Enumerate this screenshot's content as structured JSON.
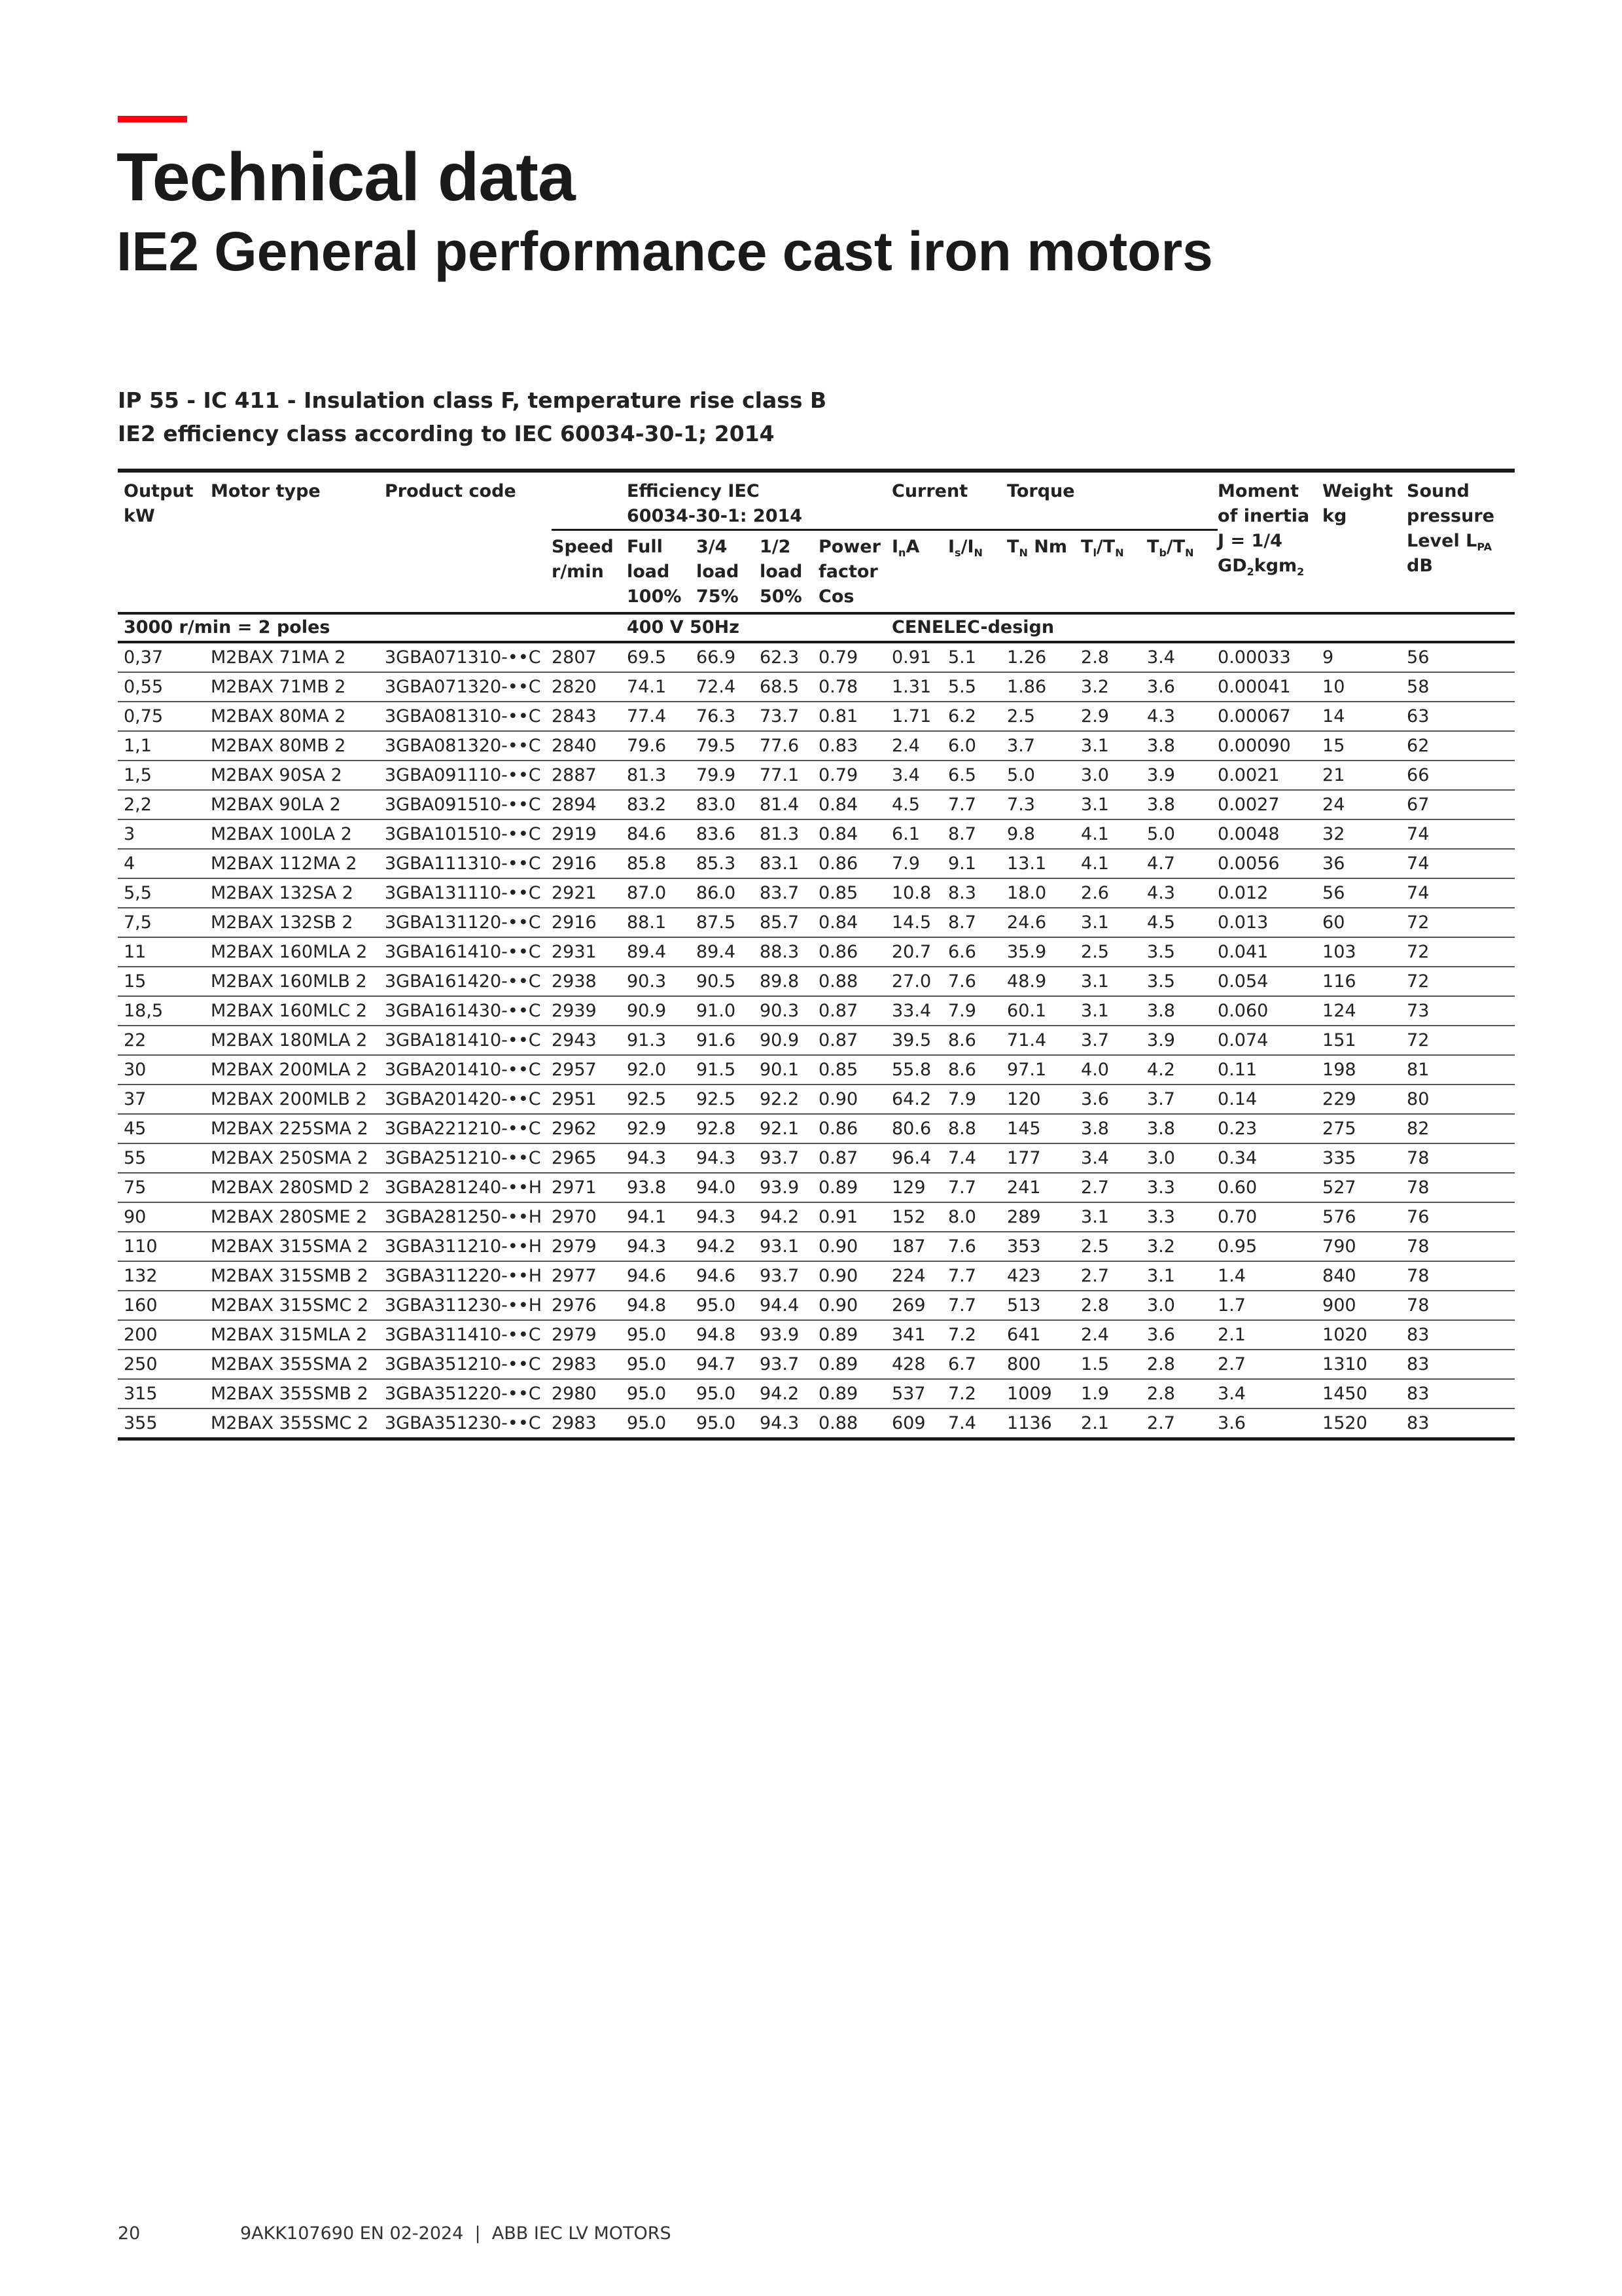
{
  "header": {
    "accent_color": "#ff000f",
    "title": "Technical data",
    "subtitle": "IE2 General performance cast iron motors",
    "spec_line_1": "IP 55 - IC 411 - Insulation class F, temperature rise class B",
    "spec_line_2": "IE2 efficiency class according to IEC 60034-30-1; 2014"
  },
  "table": {
    "group_headers": {
      "output": [
        "Output",
        "kW"
      ],
      "motor_type": "Motor type",
      "product_code": "Product code",
      "efficiency": [
        "Efficiency IEC",
        "60034-30-1: 2014"
      ],
      "current": "Current",
      "torque": "Torque",
      "moment": [
        "Moment",
        "of inertia"
      ],
      "weight": [
        "Weight",
        "kg"
      ],
      "sound": [
        "Sound",
        "pressure"
      ]
    },
    "sub_headers": [
      [
        {
          "t": "Speed"
        },
        {
          "br": 1
        },
        {
          "t": "r/min"
        }
      ],
      [
        {
          "t": "Full"
        },
        {
          "br": 1
        },
        {
          "t": "load"
        },
        {
          "br": 1
        },
        {
          "t": "100%"
        }
      ],
      [
        {
          "t": "3/4"
        },
        {
          "br": 1
        },
        {
          "t": "load"
        },
        {
          "br": 1
        },
        {
          "t": "75%"
        }
      ],
      [
        {
          "t": "1/2"
        },
        {
          "br": 1
        },
        {
          "t": "load"
        },
        {
          "br": 1
        },
        {
          "t": "50%"
        }
      ],
      [
        {
          "t": "Power"
        },
        {
          "br": 1
        },
        {
          "t": "factor"
        },
        {
          "br": 1
        },
        {
          "t": "Cos"
        }
      ],
      [
        {
          "t": "I"
        },
        {
          "sub": "n"
        },
        {
          "t": "A"
        }
      ],
      [
        {
          "t": "I"
        },
        {
          "sub": "s"
        },
        {
          "t": "/I"
        },
        {
          "sub": "N"
        }
      ],
      [
        {
          "t": "T"
        },
        {
          "sub": "N"
        },
        {
          "t": " Nm"
        }
      ],
      [
        {
          "t": "T"
        },
        {
          "sub": "l"
        },
        {
          "t": "/T"
        },
        {
          "sub": "N"
        }
      ],
      [
        {
          "t": "T"
        },
        {
          "sub": "b"
        },
        {
          "t": "/T"
        },
        {
          "sub": "N"
        }
      ]
    ],
    "moment_sub": [
      {
        "t": "J = 1/4"
      },
      {
        "br": 1
      },
      {
        "t": "GD"
      },
      {
        "sub": "2"
      },
      {
        "t": "kgm"
      },
      {
        "sub": "2"
      }
    ],
    "sound_sub": [
      {
        "t": "Level L"
      },
      {
        "sub": "PA"
      },
      {
        "br": 1
      },
      {
        "t": "dB"
      }
    ],
    "section": {
      "poles": "3000 r/min = 2 poles",
      "voltage": "400 V 50Hz",
      "design": "CENELEC-design"
    },
    "rows": [
      [
        "0,37",
        "M2BAX 71MA 2",
        "3GBA071310-••C",
        "2807",
        "69.5",
        "66.9",
        "62.3",
        "0.79",
        "0.91",
        "5.1",
        "1.26",
        "2.8",
        "3.4",
        "0.00033",
        "9",
        "56"
      ],
      [
        "0,55",
        "M2BAX 71MB 2",
        "3GBA071320-••C",
        "2820",
        "74.1",
        "72.4",
        "68.5",
        "0.78",
        "1.31",
        "5.5",
        "1.86",
        "3.2",
        "3.6",
        "0.00041",
        "10",
        "58"
      ],
      [
        "0,75",
        "M2BAX 80MA 2",
        "3GBA081310-••C",
        "2843",
        "77.4",
        "76.3",
        "73.7",
        "0.81",
        "1.71",
        "6.2",
        "2.5",
        "2.9",
        "4.3",
        "0.00067",
        "14",
        "63"
      ],
      [
        "1,1",
        "M2BAX 80MB 2",
        "3GBA081320-••C",
        "2840",
        "79.6",
        "79.5",
        "77.6",
        "0.83",
        "2.4",
        "6.0",
        "3.7",
        "3.1",
        "3.8",
        "0.00090",
        "15",
        "62"
      ],
      [
        "1,5",
        "M2BAX 90SA 2",
        "3GBA091110-••C",
        "2887",
        "81.3",
        "79.9",
        "77.1",
        "0.79",
        "3.4",
        "6.5",
        "5.0",
        "3.0",
        "3.9",
        "0.0021",
        "21",
        "66"
      ],
      [
        "2,2",
        "M2BAX 90LA 2",
        "3GBA091510-••C",
        "2894",
        "83.2",
        "83.0",
        "81.4",
        "0.84",
        "4.5",
        "7.7",
        "7.3",
        "3.1",
        "3.8",
        "0.0027",
        "24",
        "67"
      ],
      [
        "3",
        "M2BAX 100LA 2",
        "3GBA101510-••C",
        "2919",
        "84.6",
        "83.6",
        "81.3",
        "0.84",
        "6.1",
        "8.7",
        "9.8",
        "4.1",
        "5.0",
        "0.0048",
        "32",
        "74"
      ],
      [
        "4",
        "M2BAX 112MA 2",
        "3GBA111310-••C",
        "2916",
        "85.8",
        "85.3",
        "83.1",
        "0.86",
        "7.9",
        "9.1",
        "13.1",
        "4.1",
        "4.7",
        "0.0056",
        "36",
        "74"
      ],
      [
        "5,5",
        "M2BAX 132SA 2",
        "3GBA131110-••C",
        "2921",
        "87.0",
        "86.0",
        "83.7",
        "0.85",
        "10.8",
        "8.3",
        "18.0",
        "2.6",
        "4.3",
        "0.012",
        "56",
        "74"
      ],
      [
        "7,5",
        "M2BAX 132SB 2",
        "3GBA131120-••C",
        "2916",
        "88.1",
        "87.5",
        "85.7",
        "0.84",
        "14.5",
        "8.7",
        "24.6",
        "3.1",
        "4.5",
        "0.013",
        "60",
        "72"
      ],
      [
        "11",
        "M2BAX 160MLA 2",
        "3GBA161410-••C",
        "2931",
        "89.4",
        "89.4",
        "88.3",
        "0.86",
        "20.7",
        "6.6",
        "35.9",
        "2.5",
        "3.5",
        "0.041",
        "103",
        "72"
      ],
      [
        "15",
        "M2BAX 160MLB 2",
        "3GBA161420-••C",
        "2938",
        "90.3",
        "90.5",
        "89.8",
        "0.88",
        "27.0",
        "7.6",
        "48.9",
        "3.1",
        "3.5",
        "0.054",
        "116",
        "72"
      ],
      [
        "18,5",
        "M2BAX 160MLC 2",
        "3GBA161430-••C",
        "2939",
        "90.9",
        "91.0",
        "90.3",
        "0.87",
        "33.4",
        "7.9",
        "60.1",
        "3.1",
        "3.8",
        "0.060",
        "124",
        "73"
      ],
      [
        "22",
        "M2BAX 180MLA 2",
        "3GBA181410-••C",
        "2943",
        "91.3",
        "91.6",
        "90.9",
        "0.87",
        "39.5",
        "8.6",
        "71.4",
        "3.7",
        "3.9",
        "0.074",
        "151",
        "72"
      ],
      [
        "30",
        "M2BAX 200MLA 2",
        "3GBA201410-••C",
        "2957",
        "92.0",
        "91.5",
        "90.1",
        "0.85",
        "55.8",
        "8.6",
        "97.1",
        "4.0",
        "4.2",
        "0.11",
        "198",
        "81"
      ],
      [
        "37",
        "M2BAX 200MLB 2",
        "3GBA201420-••C",
        "2951",
        "92.5",
        "92.5",
        "92.2",
        "0.90",
        "64.2",
        "7.9",
        "120",
        "3.6",
        "3.7",
        "0.14",
        "229",
        "80"
      ],
      [
        "45",
        "M2BAX 225SMA 2",
        "3GBA221210-••C",
        "2962",
        "92.9",
        "92.8",
        "92.1",
        "0.86",
        "80.6",
        "8.8",
        "145",
        "3.8",
        "3.8",
        "0.23",
        "275",
        "82"
      ],
      [
        "55",
        "M2BAX 250SMA 2",
        "3GBA251210-••C",
        "2965",
        "94.3",
        "94.3",
        "93.7",
        "0.87",
        "96.4",
        "7.4",
        "177",
        "3.4",
        "3.0",
        "0.34",
        "335",
        "78"
      ],
      [
        "75",
        "M2BAX 280SMD 2",
        "3GBA281240-••H",
        "2971",
        "93.8",
        "94.0",
        "93.9",
        "0.89",
        "129",
        "7.7",
        "241",
        "2.7",
        "3.3",
        "0.60",
        "527",
        "78"
      ],
      [
        "90",
        "M2BAX 280SME 2",
        "3GBA281250-••H",
        "2970",
        "94.1",
        "94.3",
        "94.2",
        "0.91",
        "152",
        "8.0",
        "289",
        "3.1",
        "3.3",
        "0.70",
        "576",
        "76"
      ],
      [
        "110",
        "M2BAX 315SMA 2",
        "3GBA311210-••H",
        "2979",
        "94.3",
        "94.2",
        "93.1",
        "0.90",
        "187",
        "7.6",
        "353",
        "2.5",
        "3.2",
        "0.95",
        "790",
        "78"
      ],
      [
        "132",
        "M2BAX 315SMB 2",
        "3GBA311220-••H",
        "2977",
        "94.6",
        "94.6",
        "93.7",
        "0.90",
        "224",
        "7.7",
        "423",
        "2.7",
        "3.1",
        "1.4",
        "840",
        "78"
      ],
      [
        "160",
        "M2BAX 315SMC 2",
        "3GBA311230-••H",
        "2976",
        "94.8",
        "95.0",
        "94.4",
        "0.90",
        "269",
        "7.7",
        "513",
        "2.8",
        "3.0",
        "1.7",
        "900",
        "78"
      ],
      [
        "200",
        "M2BAX 315MLA 2",
        "3GBA311410-••C",
        "2979",
        "95.0",
        "94.8",
        "93.9",
        "0.89",
        "341",
        "7.2",
        "641",
        "2.4",
        "3.6",
        "2.1",
        "1020",
        "83"
      ],
      [
        "250",
        "M2BAX 355SMA 2",
        "3GBA351210-••C",
        "2983",
        "95.0",
        "94.7",
        "93.7",
        "0.89",
        "428",
        "6.7",
        "800",
        "1.5",
        "2.8",
        "2.7",
        "1310",
        "83"
      ],
      [
        "315",
        "M2BAX 355SMB 2",
        "3GBA351220-••C",
        "2980",
        "95.0",
        "95.0",
        "94.2",
        "0.89",
        "537",
        "7.2",
        "1009",
        "1.9",
        "2.8",
        "3.4",
        "1450",
        "83"
      ],
      [
        "355",
        "M2BAX 355SMC 2",
        "3GBA351230-••C",
        "2983",
        "95.0",
        "95.0",
        "94.3",
        "0.88",
        "609",
        "7.4",
        "1136",
        "2.1",
        "2.7",
        "3.6",
        "1520",
        "83"
      ]
    ]
  },
  "footer": {
    "page_number": "20",
    "doc_info": "9AKK107690 EN 02-2024  |  ABB IEC LV MOTORS"
  }
}
